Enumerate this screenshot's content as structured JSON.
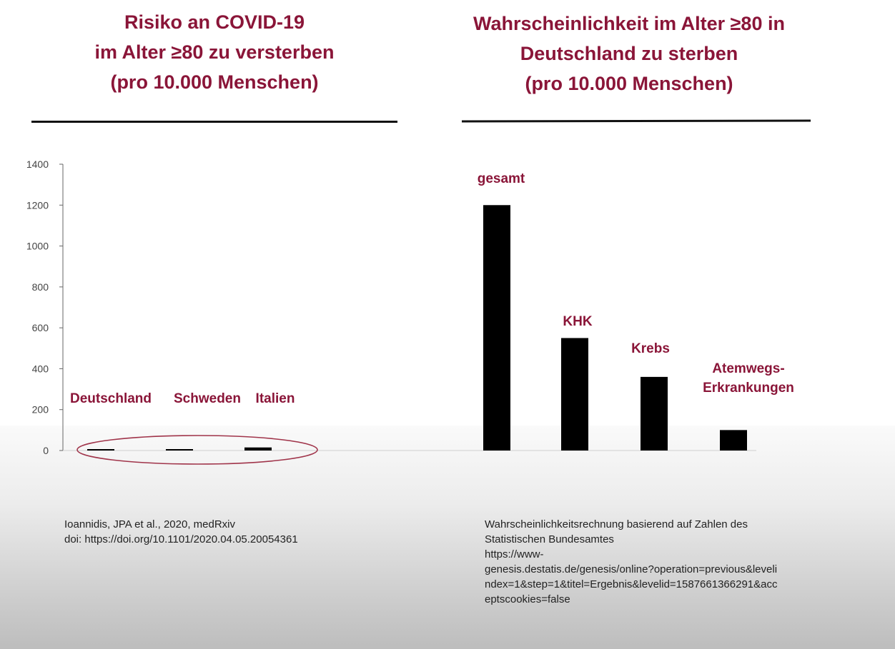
{
  "headings": {
    "left": [
      "Risiko an COVID-19",
      "im Alter ≥80 zu versterben",
      "(pro 10.000 Menschen)"
    ],
    "right": [
      "Wahrscheinlichkeit  im Alter ≥80 in",
      "Deutschland  zu sterben",
      "(pro 10.000 Menschen)"
    ]
  },
  "colors": {
    "label": "#8a1538",
    "bar": "#000000",
    "axis": "#666666",
    "ellipse": "#a0344a"
  },
  "chart_data": {
    "type": "bar",
    "title": "",
    "xlabel": "",
    "ylabel": "",
    "ylim": [
      0,
      1400
    ],
    "yticks": [
      "0",
      "200",
      "400",
      "600",
      "800",
      "1000",
      "1200",
      "1400"
    ],
    "grid": false,
    "legend": "none",
    "categories": [
      "Deutschland",
      "Schweden",
      "Italien",
      "gesamt",
      "KHK",
      "Krebs",
      "Atemwegs-Erkrankungen"
    ],
    "category_label_lines": [
      [
        "Deutschland"
      ],
      [
        "Schweden"
      ],
      [
        "Italien"
      ],
      [
        "gesamt"
      ],
      [
        "KHK"
      ],
      [
        "Krebs"
      ],
      [
        "Atemwegs-",
        "Erkrankungen"
      ]
    ],
    "values": [
      3,
      3,
      15,
      1200,
      550,
      360,
      100
    ],
    "highlight": [
      "Deutschland",
      "Schweden",
      "Italien"
    ]
  },
  "sources": {
    "left": [
      "Ioannidis, JPA et al., 2020, medRxiv",
      "doi: https://doi.org/10.1101/2020.04.05.20054361"
    ],
    "right": [
      "Wahrscheinlichkeitsrechnung basierend auf Zahlen des",
      "Statistischen Bundesamtes",
      "https://www-",
      "genesis.destatis.de/genesis/online?operation=previous&leveli",
      "ndex=1&step=1&titel=Ergebnis&levelid=1587661366291&acc",
      "eptscookies=false"
    ]
  }
}
